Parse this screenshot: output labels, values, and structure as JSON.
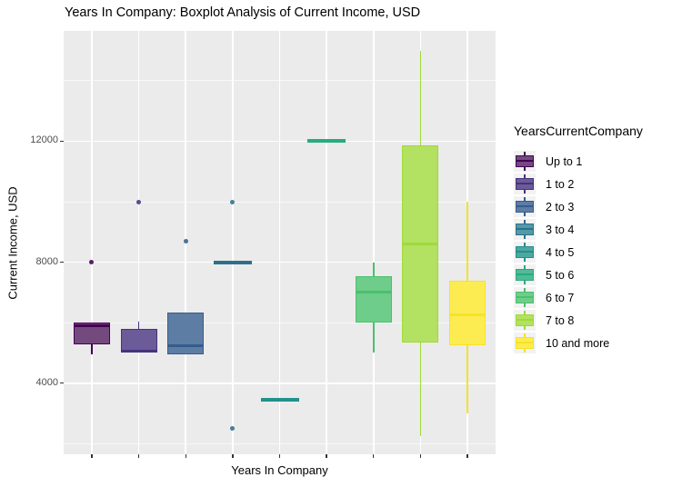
{
  "chart_data": {
    "type": "boxplot",
    "title": "Years In Company: Boxplot Analysis of Current Income, USD",
    "xlabel": "Years In Company",
    "ylabel": "Current Income, USD",
    "legend_title": "YearsCurrentCompany",
    "ylim": [
      1650,
      15650
    ],
    "y_major_ticks": [
      {
        "value": 4000,
        "label": "4000"
      },
      {
        "value": 8000,
        "label": "8000"
      },
      {
        "value": 12000,
        "label": "12000"
      }
    ],
    "y_minor_gridlines": [
      2000,
      6000,
      10000,
      14000
    ],
    "grid_on": true,
    "legend_position": "right",
    "panel_bg": "#ebebeb",
    "grid_color": "#ffffff",
    "tick_color": "#333333",
    "tick_label_color": "#4d4d4d",
    "categories": [
      "Up to 1",
      "1 to 2",
      "2 to 3",
      "3 to 4",
      "4 to 5",
      "5 to 6",
      "6 to 7",
      "7 to 8",
      "10 and more"
    ],
    "groups": [
      {
        "label": "Up to 1",
        "fill": "#744a7e",
        "stroke": "#440154",
        "q1": 5300,
        "median": 5900,
        "q3": 6000,
        "whisker_low": 4950,
        "whisker_high": 6000,
        "outliers": [
          8000
        ]
      },
      {
        "label": "1 to 2",
        "fill": "#6b5b98",
        "stroke": "#46327e",
        "q1": 5000,
        "median": 5050,
        "q3": 5800,
        "whisker_low": 5000,
        "whisker_high": 6050,
        "outliers": [
          10000
        ]
      },
      {
        "label": "2 to 3",
        "fill": "#5e7da4",
        "stroke": "#365c8d",
        "q1": 4950,
        "median": 5250,
        "q3": 6350,
        "whisker_low": 4950,
        "whisker_high": 6350,
        "outliers": [
          8700
        ]
      },
      {
        "label": "3 to 4",
        "fill": "#529aa5",
        "stroke": "#2e6f8e",
        "q1": 8000,
        "median": 8000,
        "q3": 8000,
        "whisker_low": 8000,
        "whisker_high": 8000,
        "outliers": [
          10000,
          2500
        ]
      },
      {
        "label": "4 to 5",
        "fill": "#4da7a3",
        "stroke": "#21918c",
        "q1": 3450,
        "median": 3450,
        "q3": 3450,
        "whisker_low": 3450,
        "whisker_high": 3450,
        "outliers": []
      },
      {
        "label": "5 to 6",
        "fill": "#51ba97",
        "stroke": "#27ab81",
        "q1": 12000,
        "median": 12000,
        "q3": 12000,
        "whisker_low": 12000,
        "whisker_high": 12000,
        "outliers": []
      },
      {
        "label": "6 to 7",
        "fill": "#6ecd8a",
        "stroke": "#4ac16d",
        "q1": 6000,
        "median": 7000,
        "q3": 7550,
        "whisker_low": 5000,
        "whisker_high": 8000,
        "outliers": []
      },
      {
        "label": "7 to 8",
        "fill": "#b3e161",
        "stroke": "#9fda3a",
        "q1": 5350,
        "median": 8600,
        "q3": 11850,
        "whisker_low": 2250,
        "whisker_high": 15000,
        "outliers": []
      },
      {
        "label": "10 and more",
        "fill": "#fdec51",
        "stroke": "#f7e225",
        "q1": 5250,
        "median": 6250,
        "q3": 7400,
        "whisker_low": 3000,
        "whisker_high": 10000,
        "outliers": []
      }
    ]
  }
}
